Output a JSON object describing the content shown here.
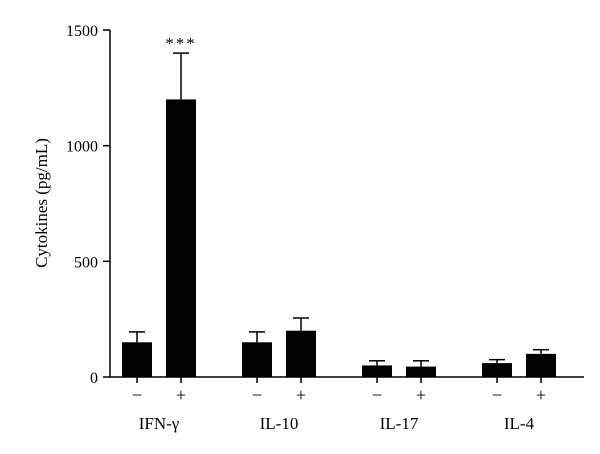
{
  "chart_data": {
    "type": "bar",
    "title": "",
    "xlabel": "",
    "ylabel": "Cytokines (pg/mL)",
    "ylim": [
      0,
      1500
    ],
    "yticks": [
      0,
      500,
      1000,
      1500
    ],
    "grid": false,
    "legend": "none",
    "groups": [
      {
        "label": "IFN-γ",
        "bars": [
          {
            "sub": "−",
            "value": 150,
            "error": 45,
            "annotation": ""
          },
          {
            "sub": "+",
            "value": 1200,
            "error": 200,
            "annotation": "***"
          }
        ]
      },
      {
        "label": "IL-10",
        "bars": [
          {
            "sub": "−",
            "value": 150,
            "error": 45,
            "annotation": ""
          },
          {
            "sub": "+",
            "value": 200,
            "error": 55,
            "annotation": ""
          }
        ]
      },
      {
        "label": "IL-17",
        "bars": [
          {
            "sub": "−",
            "value": 50,
            "error": 20,
            "annotation": ""
          },
          {
            "sub": "+",
            "value": 45,
            "error": 25,
            "annotation": ""
          }
        ]
      },
      {
        "label": "IL-4",
        "bars": [
          {
            "sub": "−",
            "value": 60,
            "error": 15,
            "annotation": ""
          },
          {
            "sub": "+",
            "value": 100,
            "error": 18,
            "annotation": ""
          }
        ]
      }
    ],
    "bar_color": "#000000"
  }
}
